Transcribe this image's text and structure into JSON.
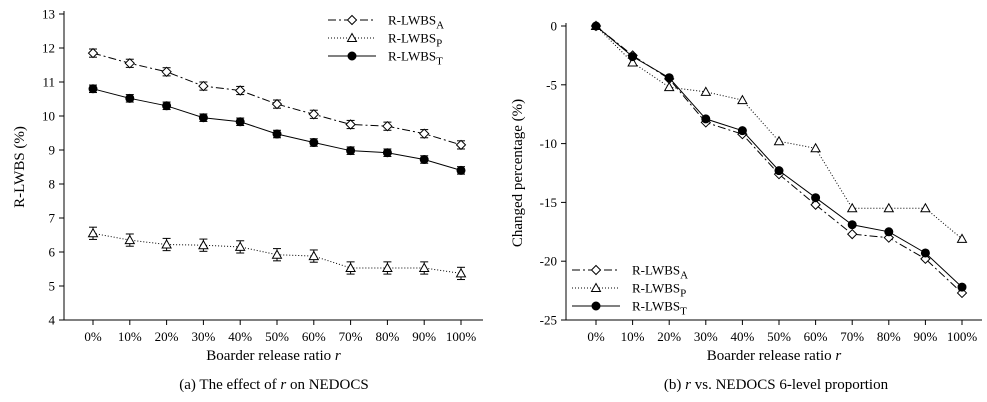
{
  "chart_data": [
    {
      "type": "line",
      "caption_prefix": "(a) The effect of ",
      "caption_var": "r",
      "caption_suffix": " on NEDOCS",
      "xlabel": "Boarder release ratio",
      "xlabel_var": "r",
      "ylabel": "R-LWBS (%)",
      "ylim": [
        4,
        13
      ],
      "yticks": [
        "4",
        "5",
        "6",
        "7",
        "8",
        "9",
        "10",
        "11",
        "12",
        "13"
      ],
      "categories": [
        "0%",
        "10%",
        "20%",
        "30%",
        "40%",
        "50%",
        "60%",
        "70%",
        "80%",
        "90%",
        "100%"
      ],
      "legend_position": "top-right",
      "series": [
        {
          "name_base": "R-LWBS",
          "name_sub": "A",
          "marker": "diamond",
          "dash": "8,3,2,3",
          "values": [
            11.85,
            11.55,
            11.3,
            10.88,
            10.75,
            10.35,
            10.05,
            9.75,
            9.7,
            9.48,
            9.15
          ],
          "err": [
            0.12,
            0.12,
            0.12,
            0.12,
            0.12,
            0.12,
            0.12,
            0.12,
            0.12,
            0.12,
            0.12
          ]
        },
        {
          "name_base": "R-LWBS",
          "name_sub": "P",
          "marker": "triangle",
          "dash": "1,2",
          "values": [
            6.55,
            6.35,
            6.22,
            6.2,
            6.15,
            5.92,
            5.88,
            5.53,
            5.53,
            5.53,
            5.37
          ],
          "err": [
            0.18,
            0.18,
            0.18,
            0.18,
            0.18,
            0.18,
            0.18,
            0.18,
            0.18,
            0.18,
            0.18
          ]
        },
        {
          "name_base": "R-LWBS",
          "name_sub": "T",
          "marker": "circle",
          "dash": "",
          "values": [
            10.8,
            10.52,
            10.3,
            9.95,
            9.83,
            9.47,
            9.22,
            8.98,
            8.92,
            8.72,
            8.4
          ],
          "err": [
            0.11,
            0.11,
            0.11,
            0.11,
            0.11,
            0.11,
            0.11,
            0.11,
            0.11,
            0.11,
            0.11
          ]
        }
      ]
    },
    {
      "type": "line",
      "caption_prefix": "(b) ",
      "caption_var": "r",
      "caption_suffix": " vs. NEDOCS 6-level proportion",
      "xlabel": "Boarder release ratio",
      "xlabel_var": "r",
      "ylabel": "Changed percentage (%)",
      "ylim": [
        -25,
        0
      ],
      "yticks": [
        "0",
        "-5",
        "-10",
        "-15",
        "-20",
        "-25"
      ],
      "categories": [
        "0%",
        "10%",
        "20%",
        "30%",
        "40%",
        "50%",
        "60%",
        "70%",
        "80%",
        "90%",
        "100%"
      ],
      "legend_position": "bottom-left",
      "series": [
        {
          "name_base": "R-LWBS",
          "name_sub": "A",
          "marker": "diamond",
          "dash": "8,3,2,3",
          "values": [
            0,
            -2.5,
            -4.5,
            -8.2,
            -9.2,
            -12.6,
            -15.2,
            -17.7,
            -18.0,
            -19.8,
            -22.7
          ]
        },
        {
          "name_base": "R-LWBS",
          "name_sub": "P",
          "marker": "triangle",
          "dash": "1,2",
          "values": [
            0,
            -3.1,
            -5.2,
            -5.6,
            -6.3,
            -9.8,
            -10.4,
            -15.5,
            -15.5,
            -15.5,
            -18.1
          ]
        },
        {
          "name_base": "R-LWBS",
          "name_sub": "T",
          "marker": "circle",
          "dash": "",
          "values": [
            0,
            -2.6,
            -4.4,
            -7.9,
            -8.9,
            -12.3,
            -14.6,
            -16.9,
            -17.5,
            -19.3,
            -22.2
          ]
        }
      ]
    }
  ]
}
